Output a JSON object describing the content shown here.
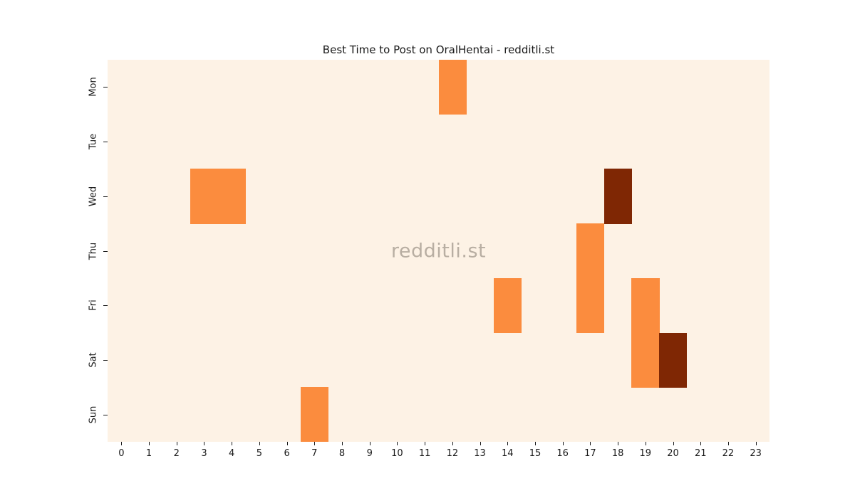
{
  "chart_data": {
    "type": "heatmap",
    "title": "Best Time to Post on OralHentai - redditli.st",
    "watermark": "redditli.st",
    "xlabel": "",
    "ylabel": "",
    "rows": [
      "Mon",
      "Tue",
      "Wed",
      "Thu",
      "Fri",
      "Sat",
      "Sun"
    ],
    "columns": [
      "0",
      "1",
      "2",
      "3",
      "4",
      "5",
      "6",
      "7",
      "8",
      "9",
      "10",
      "11",
      "12",
      "13",
      "14",
      "15",
      "16",
      "17",
      "18",
      "19",
      "20",
      "21",
      "22",
      "23"
    ],
    "value_range": [
      0,
      2
    ],
    "grid": false,
    "legend": "none",
    "colormap": "Oranges",
    "colors": {
      "empty": "#fdf2e5",
      "level1": "#fb8c3e",
      "level2": "#7f2704",
      "tick": "#1a1a1a",
      "watermark_gray": "#b2aaa2",
      "page_bg": "#ffffff"
    },
    "cells": [
      {
        "day": "Mon",
        "hour": 12,
        "value": 1
      },
      {
        "day": "Wed",
        "hour": 3,
        "value": 1
      },
      {
        "day": "Wed",
        "hour": 4,
        "value": 1
      },
      {
        "day": "Wed",
        "hour": 18,
        "value": 2
      },
      {
        "day": "Thu",
        "hour": 17,
        "value": 1
      },
      {
        "day": "Fri",
        "hour": 14,
        "value": 1
      },
      {
        "day": "Fri",
        "hour": 17,
        "value": 1
      },
      {
        "day": "Fri",
        "hour": 19,
        "value": 1
      },
      {
        "day": "Sat",
        "hour": 19,
        "value": 1
      },
      {
        "day": "Sat",
        "hour": 20,
        "value": 2
      },
      {
        "day": "Sun",
        "hour": 7,
        "value": 1
      }
    ]
  }
}
